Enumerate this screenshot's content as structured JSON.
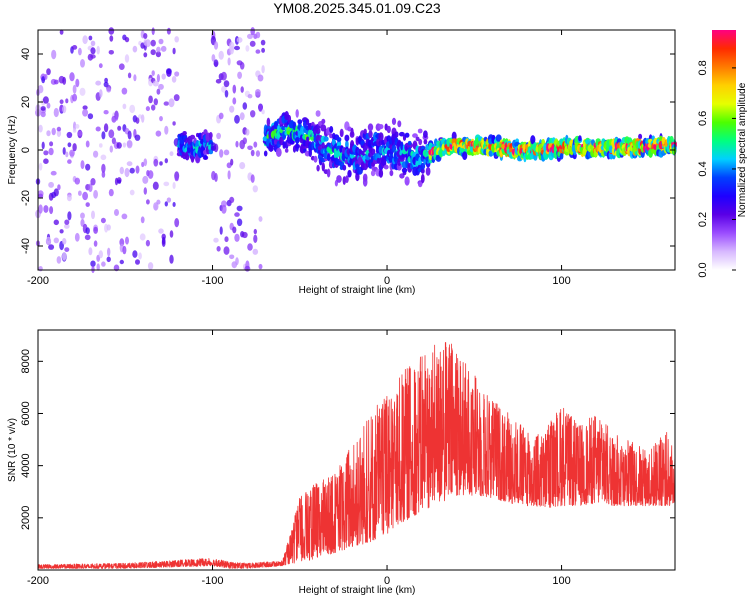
{
  "title": "YM08.2025.345.01.09.C23",
  "chart_data": [
    {
      "type": "heatmap",
      "name": "spectrogram",
      "xlabel": "Height of straight line (km)",
      "ylabel": "Frequency (Hz)",
      "xlim": [
        -200,
        165
      ],
      "ylim": [
        -50,
        50
      ],
      "x_ticks": [
        -200,
        -100,
        0,
        100
      ],
      "x_tick_labels": [
        "-200",
        "-100",
        "0",
        "100"
      ],
      "y_ticks": [
        -40,
        -20,
        0,
        20,
        40
      ],
      "y_tick_labels": [
        "-40",
        "-20",
        "0",
        "20",
        "40"
      ],
      "colorbar": {
        "label": "Normalized spectral amplitude",
        "range": [
          0,
          0.95
        ],
        "ticks": [
          0,
          0.2,
          0.4,
          0.6,
          0.8
        ],
        "tick_labels": [
          "0.0",
          "0.2",
          "0.4",
          "0.6",
          "0.8"
        ],
        "colormap": [
          "#ffffff",
          "#d7b8ff",
          "#9b4dff",
          "#5a00e6",
          "#1e00ff",
          "#0040ff",
          "#00d0ff",
          "#00ff7f",
          "#4cff00",
          "#e6ff00",
          "#ffd000",
          "#ff7a00",
          "#ff2a00",
          "#ff0080"
        ]
      },
      "regions": [
        {
          "x_range": [
            -200,
            -70
          ],
          "freq_center": 0,
          "freq_spread": 50,
          "amplitude": 0.25,
          "description": "broadband noise"
        },
        {
          "x_range": [
            -120,
            -100
          ],
          "freq_center": 2,
          "freq_spread": 8,
          "amplitude": 0.4
        },
        {
          "x_range": [
            -70,
            -40
          ],
          "freq_center": 6,
          "freq_spread": 10,
          "amplitude": 0.45
        },
        {
          "x_range": [
            -40,
            25
          ],
          "freq_center": 0,
          "freq_spread": 15,
          "amplitude": 0.4
        },
        {
          "x_range": [
            25,
            165
          ],
          "freq_center": 1,
          "freq_spread": 5,
          "amplitude": 0.85
        }
      ],
      "signal_track": [
        [
          -120,
          2
        ],
        [
          -110,
          1
        ],
        [
          -100,
          2
        ],
        [
          -80,
          3
        ],
        [
          -70,
          5
        ],
        [
          -60,
          8
        ],
        [
          -50,
          7
        ],
        [
          -40,
          3
        ],
        [
          -30,
          -1
        ],
        [
          -20,
          -3
        ],
        [
          -10,
          0
        ],
        [
          0,
          1
        ],
        [
          10,
          -2
        ],
        [
          20,
          -3
        ],
        [
          30,
          0
        ],
        [
          40,
          2
        ],
        [
          60,
          1
        ],
        [
          80,
          0
        ],
        [
          100,
          1
        ],
        [
          120,
          1
        ],
        [
          140,
          1
        ],
        [
          165,
          2
        ]
      ]
    },
    {
      "type": "line",
      "name": "snr",
      "xlabel": "Height of straight line (km)",
      "ylabel": "SNR (10 * v/v)",
      "xlim": [
        -200,
        165
      ],
      "ylim": [
        0,
        9200
      ],
      "x_ticks": [
        -200,
        -100,
        0,
        100
      ],
      "x_tick_labels": [
        "-200",
        "-100",
        "0",
        "100"
      ],
      "y_ticks": [
        2000,
        4000,
        6000,
        8000
      ],
      "y_tick_labels": [
        "2000",
        "4000",
        "6000",
        "8000"
      ],
      "line_color": "#ee3333",
      "envelope": {
        "x": [
          -200,
          -150,
          -100,
          -90,
          -80,
          -60,
          -55,
          -50,
          -40,
          -30,
          -20,
          -10,
          0,
          10,
          20,
          30,
          35,
          40,
          50,
          60,
          70,
          80,
          90,
          100,
          110,
          120,
          130,
          140,
          150,
          160,
          165
        ],
        "low": [
          0,
          0,
          100,
          0,
          0,
          100,
          200,
          200,
          400,
          600,
          800,
          1000,
          1300,
          1800,
          2200,
          2500,
          2600,
          2800,
          2800,
          2700,
          2500,
          2400,
          2300,
          2400,
          2400,
          2500,
          2400,
          2400,
          2400,
          2400,
          2400
        ],
        "high": [
          150,
          200,
          400,
          250,
          200,
          300,
          1400,
          2800,
          3300,
          3600,
          4800,
          6200,
          6600,
          7700,
          8200,
          8700,
          9000,
          8500,
          7500,
          6600,
          6000,
          5300,
          5300,
          6300,
          5500,
          6000,
          5200,
          4900,
          4600,
          5300,
          4400
        ]
      }
    }
  ]
}
